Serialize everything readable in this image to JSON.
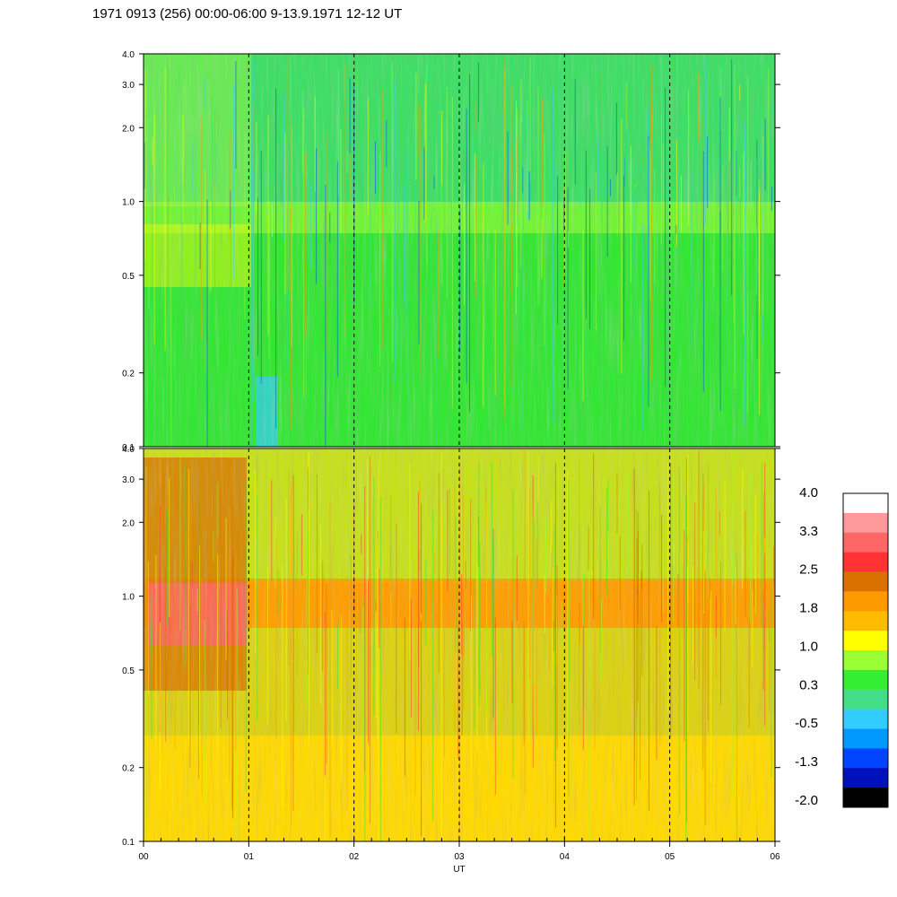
{
  "title": "1971 0913 (256) 00:00-06:00 9-13.9.1971  12-12 UT",
  "chart_data": {
    "type": "heatmap",
    "title": "1971 0913 (256) 00:00-06:00 9-13.9.1971  12-12 UT",
    "xlabel": "UT",
    "x_ticks": [
      "00",
      "01",
      "02",
      "03",
      "04",
      "05",
      "06"
    ],
    "x_range": [
      0,
      6
    ],
    "y_scale": "log",
    "y_range": [
      0.1,
      4.0
    ],
    "y_ticks": [
      {
        "value": 0.1,
        "label": "0.1"
      },
      {
        "value": 0.2,
        "label": "0.2"
      },
      {
        "value": 0.5,
        "label": "0.5"
      },
      {
        "value": 1.0,
        "label": "1.0"
      },
      {
        "value": 2.0,
        "label": "2.0"
      },
      {
        "value": 3.0,
        "label": "3.0"
      },
      {
        "value": 4.0,
        "label": "4.0"
      }
    ],
    "dashed_lines_at": [
      1,
      2,
      3,
      4,
      5
    ],
    "panels": [
      {
        "name": "upper",
        "dominant_level": 0.3
      },
      {
        "name": "lower",
        "dominant_level": 1.8
      }
    ],
    "colorbar": {
      "labels": [
        "4.0",
        "3.3",
        "2.5",
        "1.8",
        "1.0",
        "0.3",
        "-0.5",
        "-1.3",
        "-2.0"
      ],
      "colors": [
        "#ffffff",
        "#ff9999",
        "#ff6666",
        "#ff3333",
        "#d97000",
        "#ff9900",
        "#ffbb00",
        "#ffff00",
        "#99ff33",
        "#33ee33",
        "#44dd88",
        "#33ccff",
        "#0099ff",
        "#0044ff",
        "#0011bb",
        "#000000"
      ]
    }
  }
}
